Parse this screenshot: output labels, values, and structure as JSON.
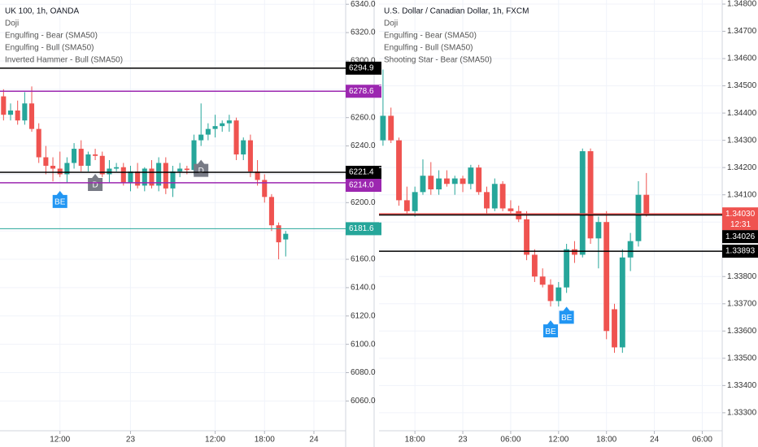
{
  "chart_data": [
    {
      "type": "candlestick",
      "title": "UK 100, 1h, OANDA",
      "legend": [
        "Doji",
        "Engulfing - Bear (SMA50)",
        "Engulfing - Bull (SMA50)",
        "Inverted Hammer - Bull (SMA50)"
      ],
      "categories": [
        null,
        null,
        null,
        null,
        null,
        null,
        null,
        null,
        "12:00",
        null,
        null,
        null,
        null,
        null,
        null,
        null,
        null,
        null,
        "23",
        null,
        null,
        null,
        null,
        null,
        null,
        null,
        null,
        null,
        null,
        null,
        "12:00",
        null,
        null,
        null,
        null,
        null,
        null,
        "18:00",
        null,
        null,
        null,
        null,
        null,
        null,
        "24",
        null,
        null,
        null,
        null
      ],
      "open": [
        6275,
        6262,
        6265,
        6258,
        6270,
        6252,
        6232,
        6226,
        6224,
        6220,
        6228,
        6238,
        6226,
        6234,
        6233,
        6220,
        6224,
        6225,
        6214,
        6222,
        6212,
        6224,
        6212,
        6228,
        6210,
        6222,
        6224,
        6223,
        6244,
        6248,
        6252,
        6254,
        6256,
        6258,
        6234,
        6244,
        6222,
        6216,
        6204,
        6184,
        6174,
        null,
        null,
        null,
        null,
        null,
        null,
        null,
        null
      ],
      "high": [
        6280,
        6270,
        6272,
        6278,
        6282,
        6256,
        6240,
        6232,
        6236,
        6232,
        6242,
        6244,
        6236,
        6238,
        6236,
        6230,
        6228,
        6228,
        6226,
        6228,
        6225,
        6230,
        6232,
        6232,
        6226,
        6228,
        6226,
        6248,
        6270,
        6256,
        6262,
        6258,
        6262,
        6260,
        6246,
        6248,
        6230,
        6220,
        6206,
        6186,
        6180,
        null,
        null,
        null,
        null,
        null,
        null,
        null,
        null
      ],
      "low": [
        6258,
        6258,
        6255,
        6255,
        6250,
        6228,
        6220,
        6215,
        6218,
        6214,
        6224,
        6222,
        6222,
        6230,
        6218,
        6214,
        6222,
        6212,
        6208,
        6210,
        6208,
        6210,
        6208,
        6206,
        6204,
        6218,
        6220,
        6220,
        6240,
        6244,
        6246,
        6250,
        6250,
        6230,
        6230,
        6218,
        6212,
        6200,
        6180,
        6160,
        6162,
        null,
        null,
        null,
        null,
        null,
        null,
        null,
        null
      ],
      "close": [
        6262,
        6265,
        6258,
        6270,
        6252,
        6232,
        6226,
        6224,
        6220,
        6228,
        6238,
        6226,
        6234,
        6233,
        6220,
        6224,
        6225,
        6214,
        6222,
        6212,
        6224,
        6212,
        6228,
        6210,
        6222,
        6224,
        6223,
        6244,
        6248,
        6252,
        6254,
        6256,
        6258,
        6234,
        6244,
        6222,
        6216,
        6204,
        6184,
        6172,
        6178,
        null,
        null,
        null,
        null,
        null,
        null,
        null,
        null
      ],
      "signals": [
        null,
        null,
        null,
        null,
        null,
        null,
        null,
        null,
        "BE",
        null,
        null,
        null,
        null,
        "D",
        null,
        null,
        null,
        null,
        null,
        null,
        null,
        null,
        null,
        null,
        null,
        null,
        null,
        null,
        "D",
        null,
        null,
        null,
        null,
        null,
        null,
        null,
        null,
        null,
        null,
        null,
        null,
        null,
        null,
        null,
        null,
        null,
        null,
        null,
        null
      ],
      "signal_colors": {
        "BE": "#2196f3",
        "D": "#787b86"
      },
      "up_color": "#26a69a",
      "down_color": "#ef5350",
      "ylim": [
        6039,
        6343
      ],
      "yticks": [
        {
          "value": 6060,
          "label": "6060.0"
        },
        {
          "value": 6080,
          "label": "6080.0"
        },
        {
          "value": 6100,
          "label": "6100.0"
        },
        {
          "value": 6120,
          "label": "6120.0"
        },
        {
          "value": 6140,
          "label": "6140.0"
        },
        {
          "value": 6160,
          "label": "6160.0"
        },
        {
          "value": 6180,
          "label": "6180.0"
        },
        {
          "value": 6200,
          "label": "6200.0"
        },
        {
          "value": 6220,
          "label": "6220.0"
        },
        {
          "value": 6240,
          "label": "6240.0"
        },
        {
          "value": 6260,
          "label": "6260.0"
        },
        {
          "value": 6280,
          "label": "6280.0"
        },
        {
          "value": 6300,
          "label": "6300.0"
        },
        {
          "value": 6320,
          "label": "6320.0"
        },
        {
          "value": 6340,
          "label": "6340.0"
        }
      ],
      "levels": [
        {
          "value": 6294.9,
          "color": "#000000"
        },
        {
          "value": 6278.6,
          "color": "#9c27b0"
        },
        {
          "value": 6221.4,
          "color": "#000000"
        },
        {
          "value": 6214,
          "label": "6214.0",
          "color": "#9c27b0"
        },
        {
          "value": 6181.6,
          "color": "#26a69a"
        }
      ],
      "grid": true
    },
    {
      "type": "candlestick",
      "title": "U.S. Dollar / Canadian Dollar, 1h, FXCM",
      "legend": [
        "Doji",
        "Engulfing - Bear (SMA50)",
        "Engulfing - Bull (SMA50)",
        "Shooting Star - Bear (SMA50)"
      ],
      "categories": [
        null,
        null,
        null,
        null,
        "18:00",
        null,
        null,
        null,
        null,
        null,
        "23",
        null,
        null,
        null,
        null,
        null,
        "06:00",
        null,
        null,
        null,
        null,
        null,
        "12:00",
        null,
        null,
        null,
        null,
        null,
        "18:00",
        null,
        null,
        null,
        null,
        null,
        "24",
        null,
        null,
        null,
        null,
        null,
        "06:00",
        null,
        null
      ],
      "open": [
        1.343,
        1.3439,
        1.343,
        1.3408,
        1.3404,
        1.3411,
        1.3417,
        1.3412,
        1.3416,
        1.3414,
        1.3416,
        1.3414,
        1.342,
        1.3411,
        1.3405,
        1.3414,
        1.3405,
        1.3404,
        1.3401,
        1.3388,
        1.338,
        1.3377,
        1.3371,
        1.3376,
        1.339,
        1.3388,
        1.3426,
        1.3394,
        1.34,
        1.3368,
        1.3354,
        1.3387,
        1.3393,
        1.341,
        null,
        null,
        null,
        null,
        null,
        null,
        null,
        null,
        null
      ],
      "high": [
        1.3456,
        1.3442,
        1.3431,
        1.3413,
        1.3413,
        1.3423,
        1.3422,
        1.3419,
        1.3419,
        1.3417,
        1.3417,
        1.3421,
        1.3421,
        1.3413,
        1.3416,
        1.3415,
        1.3408,
        1.3406,
        1.3404,
        1.339,
        1.3383,
        1.3379,
        1.3378,
        1.3392,
        1.3393,
        1.3427,
        1.3427,
        1.3402,
        1.3404,
        1.337,
        1.339,
        1.3396,
        1.3415,
        1.3418,
        null,
        null,
        null,
        null,
        null,
        null,
        null,
        null,
        null
      ],
      "low": [
        1.3428,
        1.3429,
        1.3406,
        1.3403,
        1.3402,
        1.341,
        1.341,
        1.341,
        1.3413,
        1.341,
        1.3411,
        1.3412,
        1.341,
        1.3403,
        1.3404,
        1.3404,
        1.3403,
        1.34,
        1.3386,
        1.3378,
        1.3376,
        1.3369,
        1.3369,
        1.3374,
        1.3385,
        1.3387,
        1.3392,
        1.3383,
        1.3357,
        1.3352,
        1.3352,
        1.3382,
        1.3391,
        1.3402,
        null,
        null,
        null,
        null,
        null,
        null,
        null,
        null,
        null
      ],
      "close": [
        1.3439,
        1.343,
        1.3408,
        1.3404,
        1.3411,
        1.3417,
        1.3412,
        1.3416,
        1.3414,
        1.3416,
        1.3414,
        1.342,
        1.3411,
        1.3405,
        1.3414,
        1.3405,
        1.3404,
        1.3401,
        1.3388,
        1.338,
        1.3377,
        1.3371,
        1.3376,
        1.339,
        1.3388,
        1.3426,
        1.3394,
        1.34,
        1.336,
        1.3354,
        1.3387,
        1.3393,
        1.341,
        1.3403,
        null,
        null,
        null,
        null,
        null,
        null,
        null,
        null,
        null
      ],
      "signals": [
        null,
        null,
        null,
        null,
        null,
        null,
        null,
        null,
        null,
        null,
        null,
        null,
        null,
        null,
        null,
        null,
        null,
        null,
        null,
        null,
        null,
        "BE",
        null,
        "BE",
        null,
        null,
        null,
        null,
        null,
        null,
        null,
        null,
        null,
        null,
        null,
        null,
        null,
        null,
        null,
        null,
        null,
        null,
        null
      ],
      "signal_colors": {
        "BE": "#2196f3"
      },
      "up_color": "#26a69a",
      "down_color": "#ef5350",
      "ylim": [
        1.33234,
        1.34815
      ],
      "yticks": [
        {
          "value": 1.333,
          "label": "1.33300"
        },
        {
          "value": 1.334,
          "label": "1.33400"
        },
        {
          "value": 1.335,
          "label": "1.33500"
        },
        {
          "value": 1.336,
          "label": "1.33600"
        },
        {
          "value": 1.337,
          "label": "1.33700"
        },
        {
          "value": 1.338,
          "label": "1.33800"
        },
        {
          "value": 1.339,
          "label": "1.33900"
        },
        {
          "value": 1.34,
          "label": "1.34000"
        },
        {
          "value": 1.341,
          "label": "1.34100"
        },
        {
          "value": 1.342,
          "label": "1.34200"
        },
        {
          "value": 1.343,
          "label": "1.34300"
        },
        {
          "value": 1.344,
          "label": "1.34400"
        },
        {
          "value": 1.345,
          "label": "1.34500"
        },
        {
          "value": 1.346,
          "label": "1.34600"
        },
        {
          "value": 1.347,
          "label": "1.34700"
        },
        {
          "value": 1.348,
          "label": "1.34800"
        }
      ],
      "levels": [
        {
          "value": 1.3403,
          "label": "1.34030",
          "color": "#ef5350",
          "sublabel": "12:31"
        },
        {
          "value": 1.34026,
          "color": "#000000"
        },
        {
          "value": 1.33893,
          "color": "#000000"
        }
      ],
      "grid": true
    }
  ]
}
